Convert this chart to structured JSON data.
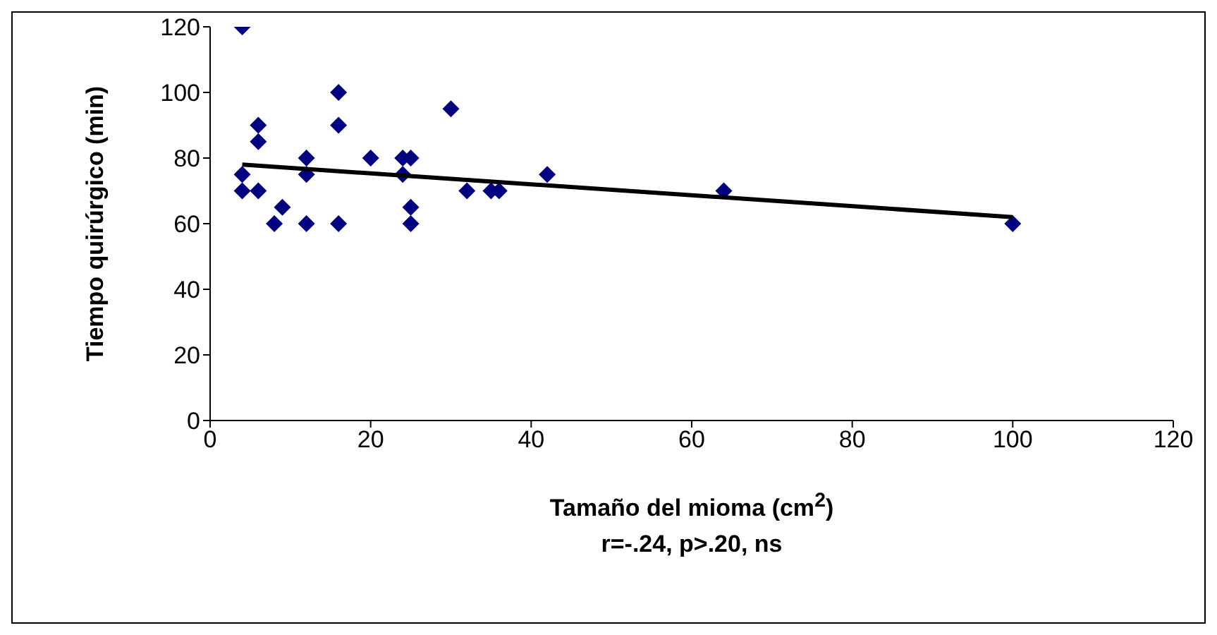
{
  "chart_data": {
    "type": "scatter",
    "xlabel": "Tamaño del mioma (cm$^{2}$)",
    "ylabel": "Tiempo quirúrgico (min)",
    "annotations": [
      "r=-.24, p>.20, ns"
    ],
    "xlim": [
      0,
      120
    ],
    "xticks": [
      0,
      20,
      40,
      60,
      80,
      100,
      120
    ],
    "ylim": [
      0,
      120
    ],
    "yticks": [
      0,
      20,
      40,
      60,
      80,
      100,
      120
    ],
    "grid": false,
    "legend": false,
    "marker": "diamond",
    "series": [
      {
        "color": "#000080",
        "x": [
          4,
          4,
          4,
          6,
          6,
          6,
          8,
          9,
          12,
          12,
          12,
          16,
          16,
          16,
          20,
          24,
          24,
          25,
          25,
          25,
          30,
          32,
          35,
          36,
          42,
          64,
          100
        ],
        "values": [
          120,
          75,
          70,
          90,
          85,
          70,
          60,
          65,
          80,
          75,
          60,
          100,
          90,
          60,
          80,
          80,
          75,
          80,
          65,
          60,
          95,
          70,
          70,
          70,
          75,
          70,
          60
        ]
      },
      {
        "type": "line",
        "marker": "none",
        "color": "#000000",
        "x": [
          4,
          100
        ],
        "values": [
          78,
          62
        ]
      }
    ]
  }
}
